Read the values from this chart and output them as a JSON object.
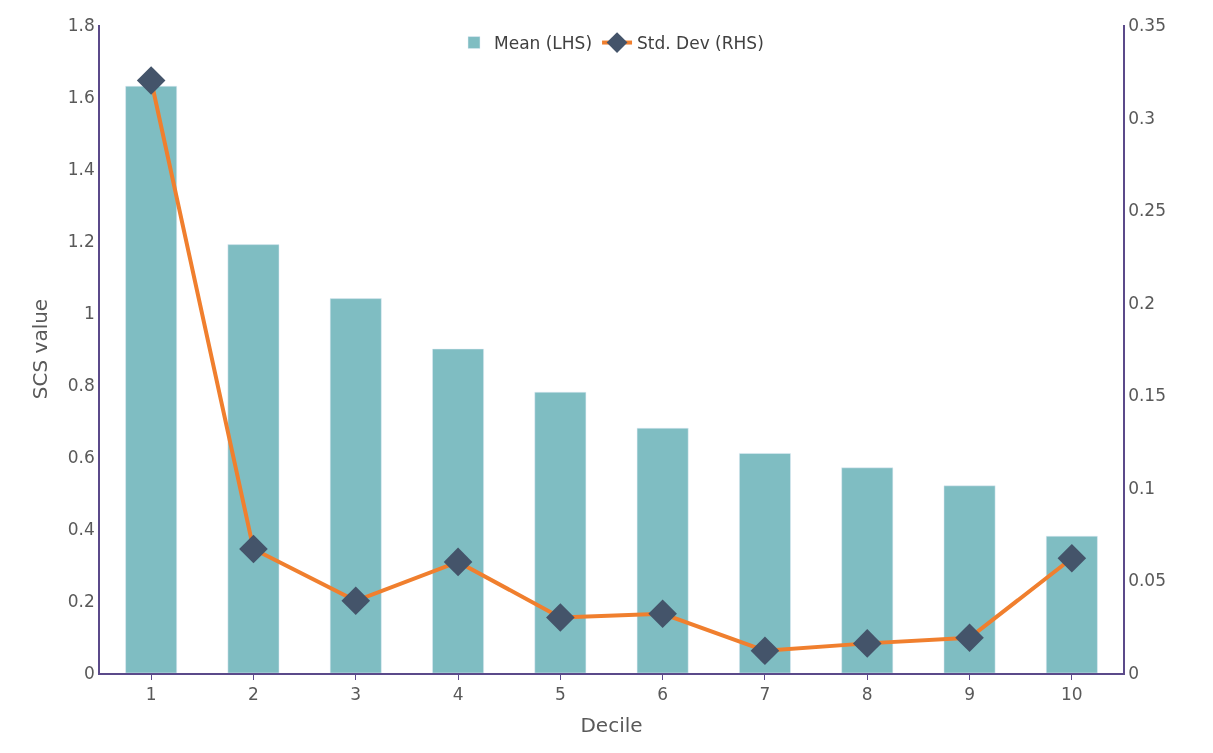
{
  "chart_data": {
    "type": "bar",
    "xlabel": "Decile",
    "ylabel": "SCS value",
    "categories": [
      "1",
      "2",
      "3",
      "4",
      "5",
      "6",
      "7",
      "8",
      "9",
      "10"
    ],
    "series": [
      {
        "name": "Mean (LHS)",
        "color": "#7fbdc2",
        "values": [
          1.63,
          1.19,
          1.04,
          0.9,
          0.78,
          0.68,
          0.61,
          0.57,
          0.52,
          0.38
        ]
      },
      {
        "name": "Std. Dev (RHS)",
        "type": "line",
        "axis": "y2",
        "color": "#f07f2e",
        "marker": "diamond",
        "values": [
          0.32,
          0.067,
          0.039,
          0.06,
          0.03,
          0.032,
          0.012,
          0.016,
          0.019,
          0.062
        ]
      }
    ],
    "ylim": [
      0,
      1.8
    ],
    "yticks": [
      0,
      0.2,
      0.4,
      0.6,
      0.8,
      1,
      1.2,
      1.4,
      1.6,
      1.8
    ],
    "y2lim": [
      0,
      0.35
    ],
    "y2ticks": [
      0,
      0.05,
      0.1,
      0.15,
      0.2,
      0.25,
      0.3,
      0.35
    ],
    "legend": "top"
  }
}
